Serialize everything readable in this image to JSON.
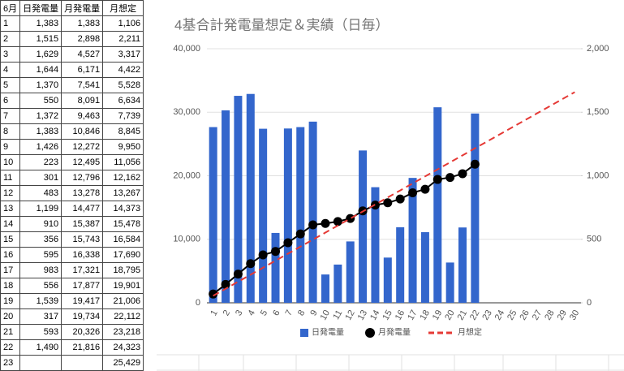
{
  "table": {
    "header": [
      "6月",
      "日発電量",
      "月発電量",
      "月想定"
    ],
    "rows": [
      [
        "1",
        "1,383",
        "1,383",
        "1,106"
      ],
      [
        "2",
        "1,515",
        "2,898",
        "2,211"
      ],
      [
        "3",
        "1,629",
        "4,527",
        "3,317"
      ],
      [
        "4",
        "1,644",
        "6,171",
        "4,422"
      ],
      [
        "5",
        "1,370",
        "7,541",
        "5,528"
      ],
      [
        "6",
        "550",
        "8,091",
        "6,634"
      ],
      [
        "7",
        "1,372",
        "9,463",
        "7,739"
      ],
      [
        "8",
        "1,383",
        "10,846",
        "8,845"
      ],
      [
        "9",
        "1,426",
        "12,272",
        "9,950"
      ],
      [
        "10",
        "223",
        "12,495",
        "11,056"
      ],
      [
        "11",
        "301",
        "12,796",
        "12,162"
      ],
      [
        "12",
        "483",
        "13,278",
        "13,267"
      ],
      [
        "13",
        "1,199",
        "14,477",
        "14,373"
      ],
      [
        "14",
        "910",
        "15,387",
        "15,478"
      ],
      [
        "15",
        "356",
        "15,743",
        "16,584"
      ],
      [
        "16",
        "595",
        "16,338",
        "17,690"
      ],
      [
        "17",
        "983",
        "17,321",
        "18,795"
      ],
      [
        "18",
        "556",
        "17,877",
        "19,901"
      ],
      [
        "19",
        "1,539",
        "19,417",
        "21,006"
      ],
      [
        "20",
        "317",
        "19,734",
        "22,112"
      ],
      [
        "21",
        "593",
        "20,326",
        "23,218"
      ],
      [
        "22",
        "1,490",
        "21,816",
        "24,323"
      ],
      [
        "23",
        null,
        null,
        "25,429"
      ]
    ]
  },
  "chart_data": {
    "type": "combo",
    "title": "4基合計発電量想定＆実績（日毎）",
    "categories": [
      1,
      2,
      3,
      4,
      5,
      6,
      7,
      8,
      9,
      10,
      11,
      12,
      13,
      14,
      15,
      16,
      17,
      18,
      19,
      20,
      21,
      22,
      23,
      24,
      25,
      26,
      27,
      28,
      29,
      30
    ],
    "ylim": [
      0,
      40000
    ],
    "yticks": [
      0,
      {
        "value": 10000,
        "label": "10,000"
      },
      {
        "value": 20000,
        "label": "20,000"
      },
      {
        "value": 30000,
        "label": "30,000"
      },
      {
        "value": 40000,
        "label": "40,000"
      }
    ],
    "y2lim": [
      0,
      2000
    ],
    "y2ticks": [
      0,
      500,
      {
        "value": 1000,
        "label": "1,000"
      },
      {
        "value": 1500,
        "label": "1,500"
      },
      {
        "value": 2000,
        "label": "2,000"
      }
    ],
    "grid": true,
    "legend": "bottom",
    "series": [
      {
        "name": "日発電量",
        "kind": "bar",
        "axis": "y2",
        "color": "#3366cc",
        "values": [
          1383,
          1515,
          1629,
          1644,
          1370,
          550,
          1372,
          1383,
          1426,
          223,
          301,
          483,
          1199,
          910,
          356,
          595,
          983,
          556,
          1539,
          317,
          593,
          1490,
          null,
          null,
          null,
          null,
          null,
          null,
          null,
          null
        ]
      },
      {
        "name": "月発電量",
        "kind": "line",
        "marker": true,
        "color": "#000000",
        "values": [
          1383,
          2898,
          4527,
          6171,
          7541,
          8091,
          9463,
          10846,
          12272,
          12495,
          12796,
          13278,
          14477,
          15387,
          15743,
          16338,
          17321,
          17877,
          19417,
          19734,
          20326,
          21816,
          null,
          null,
          null,
          null,
          null,
          null,
          null,
          null
        ]
      },
      {
        "name": "月想定",
        "kind": "line",
        "dashed": true,
        "color": "#e53935",
        "values": [
          1106,
          2211,
          3317,
          4422,
          5528,
          6634,
          7739,
          8845,
          9950,
          11056,
          12162,
          13267,
          14373,
          15478,
          16584,
          17690,
          18795,
          19901,
          21006,
          22112,
          23218,
          24323,
          25429,
          26535,
          27641,
          28746,
          29852,
          30958,
          32064,
          33170
        ]
      }
    ]
  }
}
